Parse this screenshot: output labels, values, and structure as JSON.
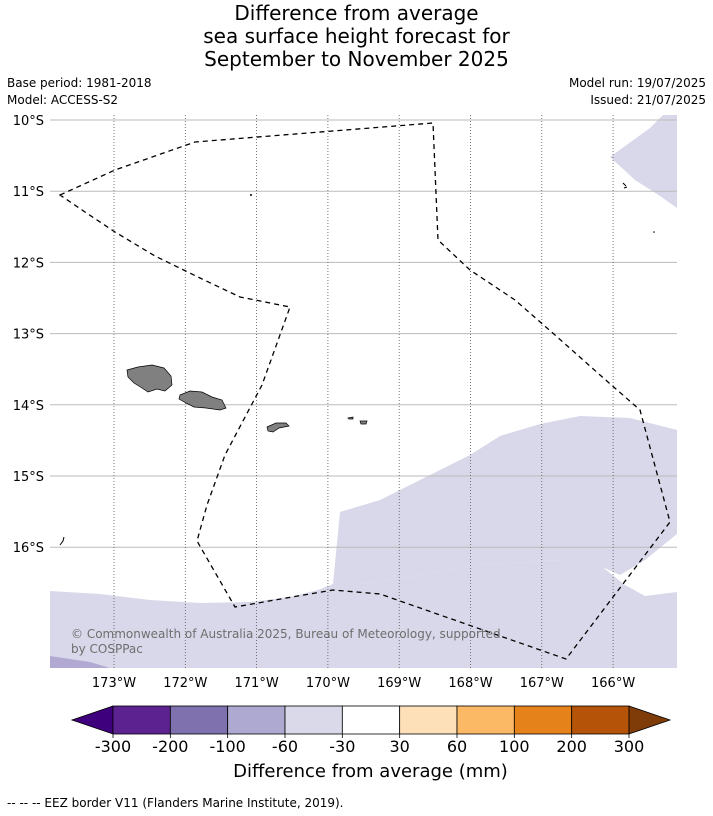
{
  "title": {
    "line1": "Difference from average",
    "line2": "sea surface height forecast for",
    "line3": "September to November 2025"
  },
  "meta": {
    "base_period": "Base period: 1981-2018",
    "model": "Model: ACCESS-S2",
    "model_run": "Model run: 19/07/2025",
    "issued": "Issued: 21/07/2025"
  },
  "map": {
    "lon_labels": [
      "173°W",
      "172°W",
      "171°W",
      "170°W",
      "169°W",
      "168°W",
      "167°W",
      "166°W"
    ],
    "lat_labels": [
      "10°S",
      "11°S",
      "12°S",
      "13°S",
      "14°S",
      "15°S",
      "16°S"
    ],
    "lon_range": [
      -173.9,
      -165.1
    ],
    "lat_range": [
      -17.75,
      -10.0
    ],
    "colors": {
      "band_-60_-30": "#d8d8ea",
      "band_-100_-60": "#b1a9d2",
      "land": "#808080",
      "grid_lon": "#555555",
      "grid_lat": "#bbbbbb"
    },
    "credit_line1": "© Commonwealth of Australia 2025, Bureau of Meteorology, supported",
    "credit_line2": "by COSPPac"
  },
  "colorbar": {
    "title": "Difference from average (mm)",
    "tick_labels": [
      "-300",
      "-200",
      "-100",
      "-60",
      "-30",
      "30",
      "60",
      "100",
      "200",
      "300"
    ],
    "colors": [
      "#3f007d",
      "#5c2390",
      "#7f70ae",
      "#aea9d1",
      "#d9d9ea",
      "#ffffff",
      "#fde0b7",
      "#fbb865",
      "#e6821a",
      "#b55309",
      "#7f3b08"
    ]
  },
  "footer": "--  --  -- EEZ border V11 (Flanders Marine Institute, 2019)."
}
